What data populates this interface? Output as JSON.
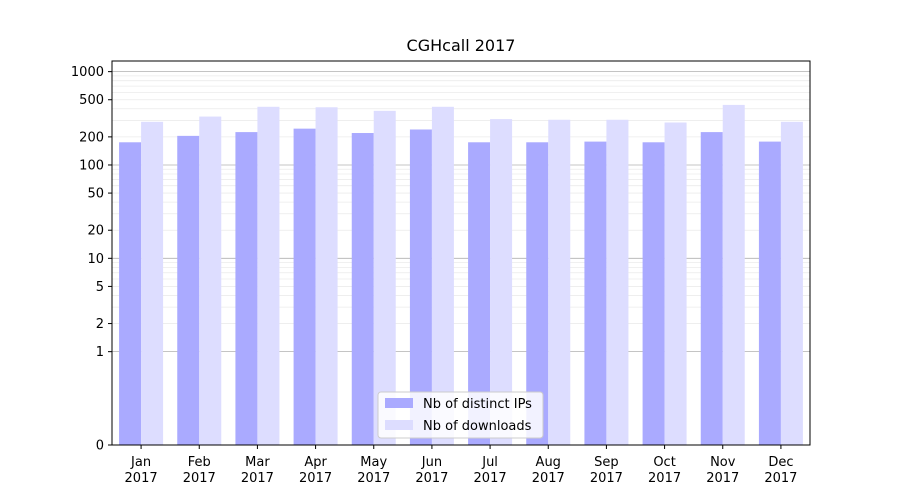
{
  "chart_data": {
    "type": "bar",
    "title": "CGHcall 2017",
    "xlabel": "",
    "ylabel": "",
    "yscale": "symlog",
    "ylim": [
      0,
      1300
    ],
    "yticks": [
      0,
      1,
      2,
      5,
      10,
      20,
      50,
      100,
      200,
      500,
      1000
    ],
    "grid": true,
    "legend_position": "lower-center",
    "categories": [
      [
        "Jan",
        "2017"
      ],
      [
        "Feb",
        "2017"
      ],
      [
        "Mar",
        "2017"
      ],
      [
        "Apr",
        "2017"
      ],
      [
        "May",
        "2017"
      ],
      [
        "Jun",
        "2017"
      ],
      [
        "Jul",
        "2017"
      ],
      [
        "Aug",
        "2017"
      ],
      [
        "Sep",
        "2017"
      ],
      [
        "Oct",
        "2017"
      ],
      [
        "Nov",
        "2017"
      ],
      [
        "Dec",
        "2017"
      ]
    ],
    "series": [
      {
        "name": "Nb of distinct IPs",
        "color": "#aaaaff",
        "values": [
          175,
          205,
          225,
          245,
          220,
          240,
          175,
          175,
          178,
          175,
          225,
          178
        ]
      },
      {
        "name": "Nb of downloads",
        "color": "#ddddff",
        "values": [
          290,
          330,
          420,
          415,
          380,
          420,
          310,
          305,
          305,
          285,
          440,
          290
        ]
      }
    ]
  }
}
